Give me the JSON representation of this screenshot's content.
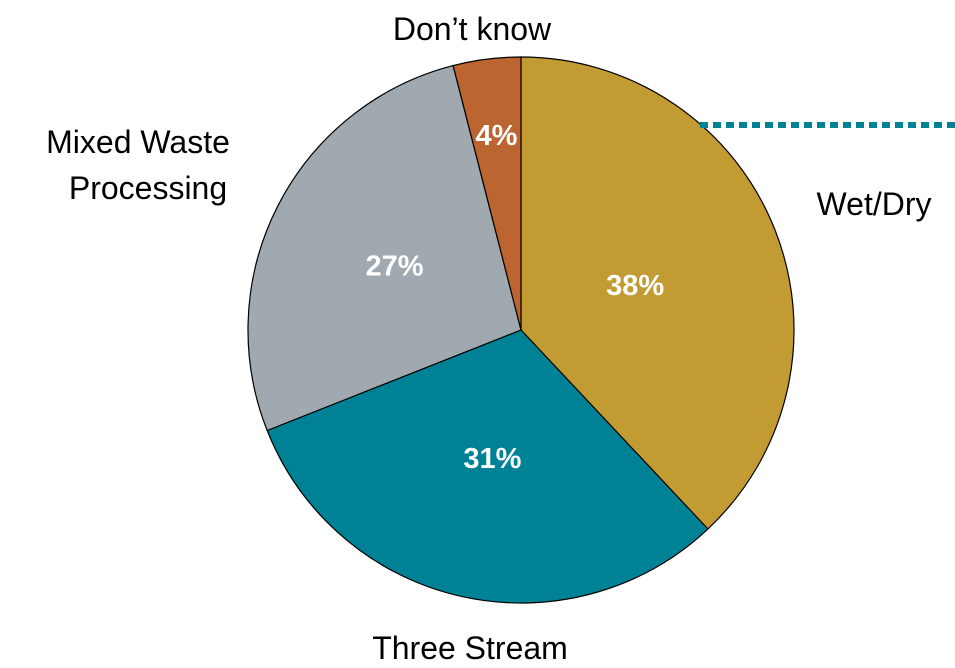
{
  "chart_data": {
    "type": "pie",
    "slices": [
      {
        "label": "Wet/Dry",
        "value": 38,
        "value_label": "38%",
        "color": "#C29C33"
      },
      {
        "label": "Three Stream",
        "value": 31,
        "value_label": "31%",
        "color": "#008296"
      },
      {
        "label": "Mixed Waste Processing",
        "value": 27,
        "value_label": "27%",
        "color": "#A0A8B0"
      },
      {
        "label": "Don’t know",
        "value": 4,
        "value_label": "4%",
        "color": "#BD6530"
      }
    ],
    "annotation": {
      "style": "dotted leader line",
      "from_slice": "Wet/Dry",
      "color": "#008296"
    }
  },
  "labels": {
    "wet_dry": "Wet/Dry",
    "three_stream": "Three Stream",
    "mixed_line1": "Mixed Waste",
    "mixed_line2": "Processing",
    "dont_know": "Don’t know"
  }
}
